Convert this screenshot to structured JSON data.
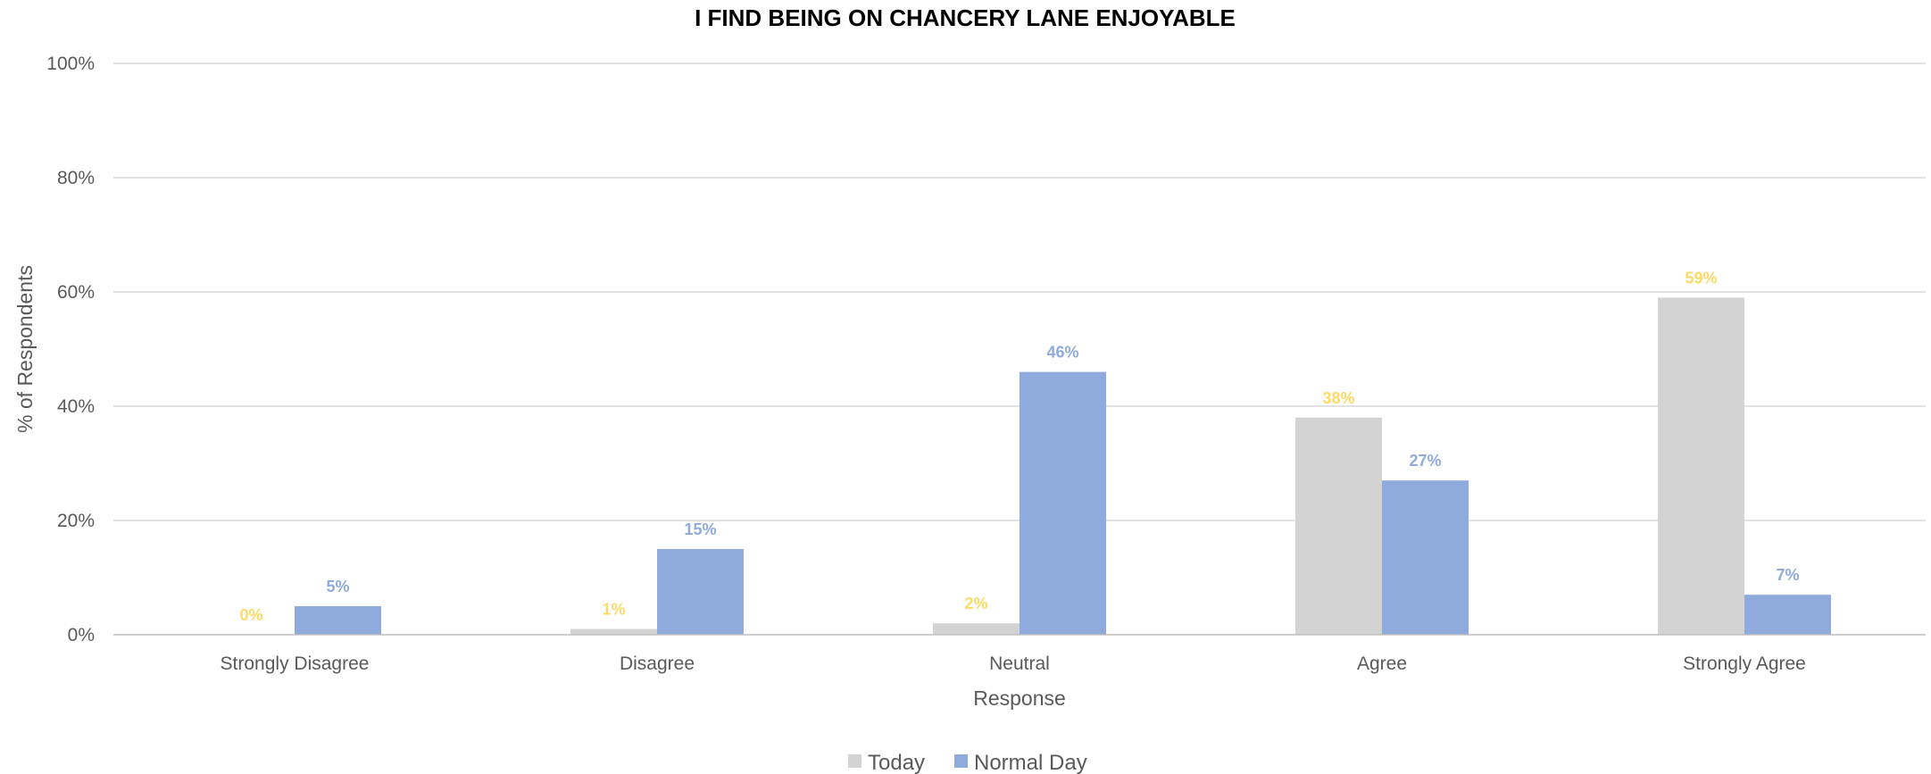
{
  "chart_data": {
    "type": "bar",
    "title": "I FIND BEING ON CHANCERY LANE ENJOYABLE",
    "xlabel": "Response",
    "ylabel": "% of Respondents",
    "categories": [
      "Strongly Disagree",
      "Disagree",
      "Neutral",
      "Agree",
      "Strongly Agree"
    ],
    "ylim": [
      0,
      100
    ],
    "yticks": [
      "0%",
      "20%",
      "40%",
      "60%",
      "80%",
      "100%"
    ],
    "ytick_values": [
      0,
      20,
      40,
      60,
      80,
      100
    ],
    "grid": true,
    "legend_position": "bottom",
    "series": [
      {
        "name": "Today",
        "values": [
          0,
          1,
          2,
          38,
          59
        ],
        "labels": [
          "0%",
          "1%",
          "2%",
          "38%",
          "59%"
        ],
        "color": "#d3d3d3",
        "label_color": "#ffd966"
      },
      {
        "name": "Normal Day",
        "values": [
          5,
          15,
          46,
          27,
          7
        ],
        "labels": [
          "5%",
          "15%",
          "46%",
          "27%",
          "7%"
        ],
        "color": "#8faadc",
        "label_color": "#8faadc"
      }
    ]
  }
}
